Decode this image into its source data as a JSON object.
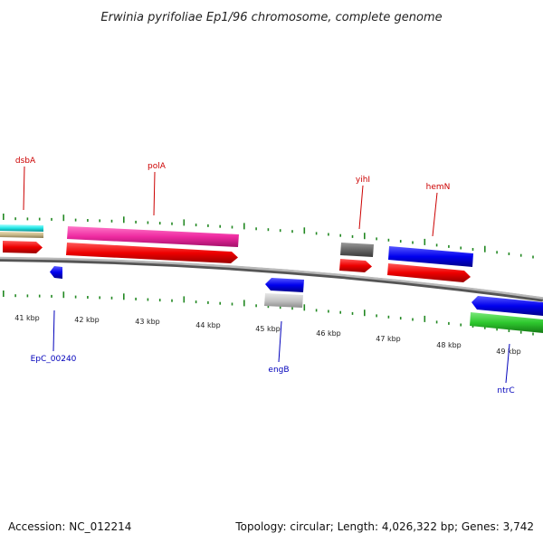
{
  "title": "Erwinia pyrifoliae Ep1/96 chromosome, complete genome",
  "accession": "Accession: NC_012214",
  "summary": "Topology: circular; Length: 4,026,322 bp; Genes: 3,742",
  "colors": {
    "forward_label": "#cc0000",
    "reverse_label": "#0000bb",
    "tick": "#228822",
    "backbone": "#888888"
  },
  "scale_labels": [
    {
      "kbp": 41,
      "label": "41 kbp"
    },
    {
      "kbp": 42,
      "label": "42 kbp"
    },
    {
      "kbp": 43,
      "label": "43 kbp"
    },
    {
      "kbp": 44,
      "label": "44 kbp"
    },
    {
      "kbp": 45,
      "label": "45 kbp"
    },
    {
      "kbp": 46,
      "label": "46 kbp"
    },
    {
      "kbp": 47,
      "label": "47 kbp"
    },
    {
      "kbp": 48,
      "label": "48 kbp"
    },
    {
      "kbp": 49,
      "label": "49 kbp"
    }
  ],
  "gene_labels": [
    {
      "name": "dsbA",
      "strand": "forward"
    },
    {
      "name": "polA",
      "strand": "forward"
    },
    {
      "name": "yihI",
      "strand": "forward"
    },
    {
      "name": "hemN",
      "strand": "forward"
    },
    {
      "name": "EpC_00240",
      "strand": "reverse"
    },
    {
      "name": "engB",
      "strand": "reverse"
    },
    {
      "name": "ntrC",
      "strand": "reverse"
    }
  ]
}
